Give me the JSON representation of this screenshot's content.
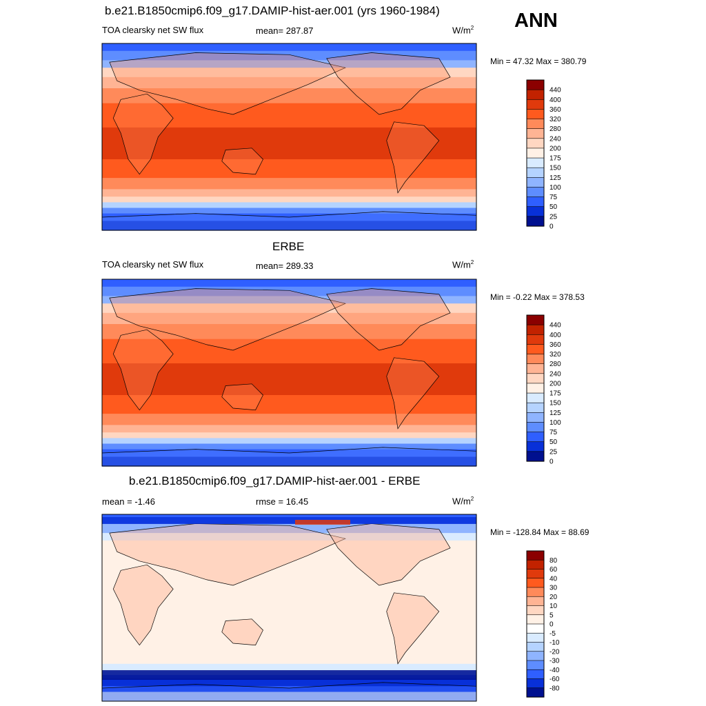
{
  "season": "ANN",
  "chart_data": [
    {
      "type": "heatmap",
      "title": "b.e21.B1850cmip6.f09_g17.DAMIP-hist-aer.001 (yrs 1960-1984)",
      "left_label": "TOA clearsky net SW flux",
      "center_label": "mean= 287.87",
      "units": "W/m",
      "units_sup": "2",
      "minmax": "Min =  47.32 Max = 380.79",
      "mean": 287.87,
      "min": 47.32,
      "max": 380.79,
      "colorbar_levels": [
        "440",
        "400",
        "360",
        "320",
        "280",
        "240",
        "200",
        "175",
        "150",
        "125",
        "100",
        "75",
        "50",
        "25",
        "0"
      ],
      "colorbar_colors": [
        "#8b0000",
        "#c22200",
        "#e03a0c",
        "#ff5a1e",
        "#ff8a5a",
        "#ffb494",
        "#ffd7c2",
        "#fff1e6",
        "#d9ebff",
        "#b5d3ff",
        "#8fb4ff",
        "#5e8dff",
        "#2f5fff",
        "#0830d8",
        "#00108f"
      ]
    },
    {
      "type": "heatmap",
      "title": "ERBE",
      "left_label": "TOA clearsky net SW flux",
      "center_label": "mean= 289.33",
      "units": "W/m",
      "units_sup": "2",
      "minmax": "Min =  -0.22 Max = 378.53",
      "mean": 289.33,
      "min": -0.22,
      "max": 378.53,
      "colorbar_levels": [
        "440",
        "400",
        "360",
        "320",
        "280",
        "240",
        "200",
        "175",
        "150",
        "125",
        "100",
        "75",
        "50",
        "25",
        "0"
      ],
      "colorbar_colors": [
        "#8b0000",
        "#c22200",
        "#e03a0c",
        "#ff5a1e",
        "#ff8a5a",
        "#ffb494",
        "#ffd7c2",
        "#fff1e6",
        "#d9ebff",
        "#b5d3ff",
        "#8fb4ff",
        "#5e8dff",
        "#2f5fff",
        "#0830d8",
        "#00108f"
      ]
    },
    {
      "type": "heatmap",
      "title": "b.e21.B1850cmip6.f09_g17.DAMIP-hist-aer.001 - ERBE",
      "left_label": "mean =  -1.46",
      "center_label": "rmse =  16.45",
      "units": "W/m",
      "units_sup": "2",
      "minmax": "Min = -128.84 Max =  88.69",
      "mean": -1.46,
      "rmse": 16.45,
      "min": -128.84,
      "max": 88.69,
      "colorbar_levels": [
        "80",
        "60",
        "40",
        "30",
        "20",
        "10",
        "5",
        "0",
        "-5",
        "-10",
        "-20",
        "-30",
        "-40",
        "-60",
        "-80"
      ],
      "colorbar_colors": [
        "#8b0000",
        "#c22200",
        "#e03a0c",
        "#ff5a1e",
        "#ff8a5a",
        "#ffb494",
        "#ffd7c2",
        "#fff1e6",
        "#ffffff",
        "#d9ebff",
        "#b5d3ff",
        "#8fb4ff",
        "#5e8dff",
        "#2f5fff",
        "#0830d8",
        "#00108f"
      ]
    }
  ]
}
